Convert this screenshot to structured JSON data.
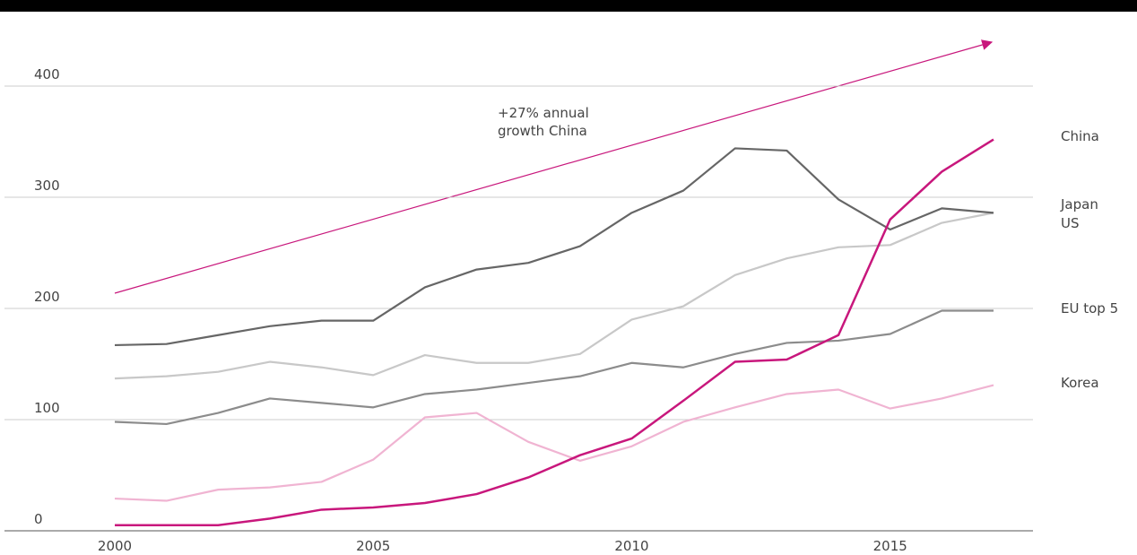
{
  "chart_data": {
    "type": "line",
    "annotation": "+27% annual growth China",
    "x": [
      2000,
      2001,
      2002,
      2003,
      2004,
      2005,
      2006,
      2007,
      2008,
      2009,
      2010,
      2011,
      2012,
      2013,
      2014,
      2015,
      2016,
      2017
    ],
    "xlim": [
      2000,
      2017
    ],
    "xticks": [
      2000,
      2005,
      2010,
      2015
    ],
    "ylim": [
      0,
      400
    ],
    "yticks": [
      0,
      100,
      200,
      300,
      400
    ],
    "grid": true,
    "series": [
      {
        "name": "China",
        "color": "#c8177c",
        "values": [
          5,
          5,
          5,
          11,
          19,
          21,
          25,
          33,
          48,
          68,
          83,
          117,
          152,
          154,
          176,
          280,
          323,
          352
        ]
      },
      {
        "name": "Japan",
        "color": "#666666",
        "values": [
          167,
          168,
          176,
          184,
          189,
          189,
          219,
          235,
          241,
          256,
          286,
          306,
          344,
          342,
          298,
          271,
          290,
          286
        ]
      },
      {
        "name": "US",
        "color": "#c8c8c8",
        "values": [
          137,
          139,
          143,
          152,
          147,
          140,
          158,
          151,
          151,
          159,
          190,
          202,
          230,
          245,
          255,
          257,
          277,
          286
        ]
      },
      {
        "name": "EU top 5",
        "color": "#8c8c8c",
        "values": [
          98,
          96,
          106,
          119,
          115,
          111,
          123,
          127,
          133,
          139,
          151,
          147,
          159,
          169,
          171,
          177,
          198,
          198
        ]
      },
      {
        "name": "Korea",
        "color": "#f0b4d2",
        "values": [
          29,
          27,
          37,
          39,
          44,
          64,
          102,
          106,
          80,
          63,
          76,
          98,
          111,
          123,
          127,
          110,
          119,
          131
        ]
      }
    ]
  }
}
